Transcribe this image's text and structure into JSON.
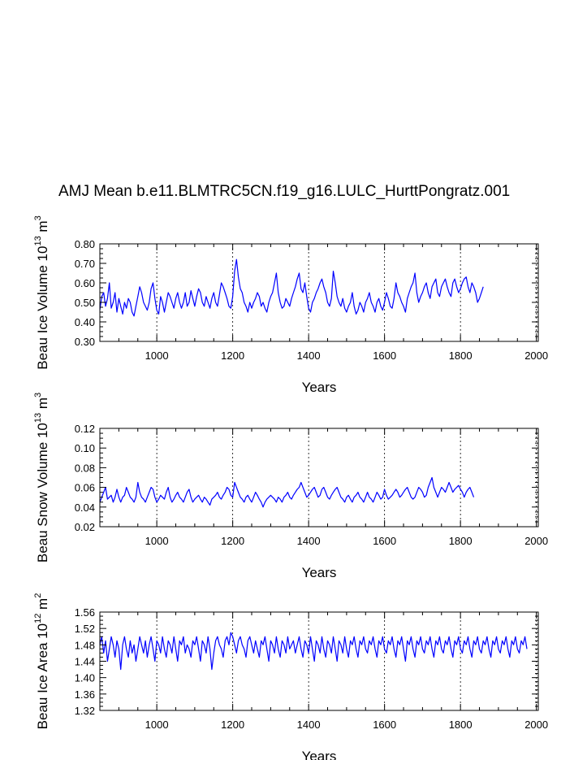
{
  "figure": {
    "title": "AMJ Mean b.e11.BLMTRC5CN.f19_g16.LULC_HurttPongratz.001",
    "line_color": "#0000ff",
    "grid_color": "#000000"
  },
  "chart_data": [
    {
      "type": "line",
      "name": "ice-volume",
      "title": "AMJ Mean b.e11.BLMTRC5CN.f19_g16.LULC_HurttPongratz.001",
      "ylabel": {
        "prefix": "Beau Ice Volume 10",
        "exp": "13",
        "unit": " m",
        "unit_exp": "3"
      },
      "xlabel": "Years",
      "xlim": [
        850,
        2005
      ],
      "ylim": [
        0.3,
        0.8
      ],
      "xticks": [
        1000,
        1200,
        1400,
        1600,
        1800,
        2000
      ],
      "xtick_labels": [
        "1000",
        "1200",
        "1400",
        "1600",
        "1800",
        "2000"
      ],
      "yticks": [
        0.3,
        0.4,
        0.5,
        0.6,
        0.7,
        0.8
      ],
      "ytick_labels": [
        "0.30",
        "0.40",
        "0.50",
        "0.60",
        "0.70",
        "0.80"
      ],
      "grid_x": [
        1000,
        1200,
        1400,
        1600,
        1800,
        2000
      ],
      "x_start": 850,
      "x_step": 5,
      "series": [
        {
          "name": "Beau Ice Volume",
          "values": [
            0.46,
            0.53,
            0.55,
            0.48,
            0.52,
            0.6,
            0.47,
            0.5,
            0.55,
            0.45,
            0.52,
            0.48,
            0.44,
            0.5,
            0.47,
            0.52,
            0.5,
            0.45,
            0.43,
            0.48,
            0.53,
            0.58,
            0.55,
            0.5,
            0.48,
            0.46,
            0.5,
            0.57,
            0.6,
            0.52,
            0.46,
            0.44,
            0.53,
            0.5,
            0.45,
            0.5,
            0.55,
            0.53,
            0.5,
            0.47,
            0.52,
            0.55,
            0.5,
            0.47,
            0.5,
            0.55,
            0.48,
            0.5,
            0.56,
            0.52,
            0.48,
            0.53,
            0.57,
            0.55,
            0.5,
            0.48,
            0.53,
            0.5,
            0.47,
            0.52,
            0.55,
            0.5,
            0.48,
            0.54,
            0.6,
            0.58,
            0.55,
            0.52,
            0.48,
            0.47,
            0.53,
            0.66,
            0.72,
            0.63,
            0.57,
            0.55,
            0.5,
            0.48,
            0.45,
            0.5,
            0.47,
            0.5,
            0.52,
            0.55,
            0.53,
            0.48,
            0.5,
            0.47,
            0.45,
            0.5,
            0.53,
            0.55,
            0.6,
            0.65,
            0.55,
            0.5,
            0.47,
            0.48,
            0.52,
            0.5,
            0.48,
            0.52,
            0.55,
            0.58,
            0.62,
            0.65,
            0.57,
            0.55,
            0.6,
            0.53,
            0.47,
            0.45,
            0.5,
            0.52,
            0.55,
            0.57,
            0.6,
            0.62,
            0.58,
            0.55,
            0.5,
            0.48,
            0.52,
            0.66,
            0.6,
            0.53,
            0.5,
            0.48,
            0.52,
            0.47,
            0.45,
            0.48,
            0.5,
            0.55,
            0.48,
            0.44,
            0.46,
            0.5,
            0.48,
            0.45,
            0.5,
            0.52,
            0.55,
            0.5,
            0.48,
            0.45,
            0.5,
            0.52,
            0.48,
            0.46,
            0.5,
            0.55,
            0.52,
            0.48,
            0.47,
            0.52,
            0.6,
            0.55,
            0.53,
            0.5,
            0.48,
            0.45,
            0.52,
            0.55,
            0.58,
            0.6,
            0.65,
            0.55,
            0.5,
            0.53,
            0.55,
            0.58,
            0.6,
            0.55,
            0.52,
            0.58,
            0.6,
            0.62,
            0.55,
            0.53,
            0.58,
            0.6,
            0.62,
            0.58,
            0.55,
            0.53,
            0.6,
            0.62,
            0.58,
            0.55,
            0.57,
            0.6,
            0.62,
            0.63,
            0.58,
            0.55,
            0.6,
            0.58,
            0.55,
            0.5,
            0.52,
            0.55,
            0.58
          ]
        }
      ]
    },
    {
      "type": "line",
      "name": "snow-volume",
      "ylabel": {
        "prefix": "Beau Snow Volume 10",
        "exp": "13",
        "unit": " m",
        "unit_exp": "3"
      },
      "xlabel": "Years",
      "xlim": [
        850,
        2005
      ],
      "ylim": [
        0.02,
        0.12
      ],
      "xticks": [
        1000,
        1200,
        1400,
        1600,
        1800,
        2000
      ],
      "xtick_labels": [
        "1000",
        "1200",
        "1400",
        "1600",
        "1800",
        "2000"
      ],
      "yticks": [
        0.02,
        0.04,
        0.06,
        0.08,
        0.1,
        0.12
      ],
      "ytick_labels": [
        "0.02",
        "0.04",
        "0.06",
        "0.08",
        "0.10",
        "0.12"
      ],
      "grid_x": [
        1000,
        1200,
        1400,
        1600,
        1800,
        2000
      ],
      "x_start": 850,
      "x_step": 5,
      "series": [
        {
          "name": "Beau Snow Volume",
          "values": [
            0.045,
            0.05,
            0.055,
            0.06,
            0.048,
            0.05,
            0.052,
            0.045,
            0.05,
            0.058,
            0.05,
            0.045,
            0.05,
            0.052,
            0.06,
            0.055,
            0.05,
            0.048,
            0.045,
            0.05,
            0.065,
            0.055,
            0.05,
            0.048,
            0.045,
            0.05,
            0.055,
            0.06,
            0.058,
            0.05,
            0.045,
            0.048,
            0.052,
            0.05,
            0.048,
            0.055,
            0.06,
            0.05,
            0.045,
            0.048,
            0.052,
            0.055,
            0.05,
            0.048,
            0.045,
            0.05,
            0.055,
            0.058,
            0.05,
            0.045,
            0.048,
            0.05,
            0.052,
            0.048,
            0.045,
            0.05,
            0.048,
            0.045,
            0.042,
            0.048,
            0.05,
            0.052,
            0.055,
            0.05,
            0.048,
            0.052,
            0.055,
            0.06,
            0.058,
            0.052,
            0.05,
            0.065,
            0.06,
            0.055,
            0.05,
            0.048,
            0.045,
            0.05,
            0.052,
            0.048,
            0.045,
            0.05,
            0.055,
            0.052,
            0.048,
            0.045,
            0.04,
            0.045,
            0.048,
            0.05,
            0.052,
            0.05,
            0.048,
            0.045,
            0.05,
            0.048,
            0.045,
            0.05,
            0.052,
            0.055,
            0.05,
            0.048,
            0.052,
            0.055,
            0.058,
            0.06,
            0.065,
            0.06,
            0.055,
            0.05,
            0.052,
            0.055,
            0.058,
            0.06,
            0.055,
            0.05,
            0.052,
            0.058,
            0.06,
            0.055,
            0.05,
            0.048,
            0.052,
            0.055,
            0.058,
            0.06,
            0.055,
            0.05,
            0.048,
            0.045,
            0.05,
            0.052,
            0.048,
            0.045,
            0.05,
            0.052,
            0.055,
            0.05,
            0.048,
            0.045,
            0.05,
            0.055,
            0.05,
            0.048,
            0.045,
            0.05,
            0.055,
            0.052,
            0.048,
            0.05,
            0.058,
            0.052,
            0.048,
            0.05,
            0.052,
            0.055,
            0.058,
            0.055,
            0.05,
            0.052,
            0.055,
            0.058,
            0.06,
            0.055,
            0.05,
            0.048,
            0.05,
            0.055,
            0.06,
            0.058,
            0.055,
            0.05,
            0.052,
            0.06,
            0.065,
            0.07,
            0.06,
            0.055,
            0.05,
            0.055,
            0.06,
            0.058,
            0.055,
            0.06,
            0.065,
            0.06,
            0.055,
            0.058,
            0.06,
            0.062,
            0.058,
            0.055,
            0.05,
            0.055,
            0.058,
            0.06,
            0.055,
            0.05
          ]
        }
      ]
    },
    {
      "type": "line",
      "name": "ice-area",
      "ylabel": {
        "prefix": "Beau Ice Area 10",
        "exp": "12",
        "unit": " m",
        "unit_exp": "2"
      },
      "xlabel": "Years",
      "xlim": [
        850,
        2005
      ],
      "ylim": [
        1.32,
        1.56
      ],
      "xticks": [
        1000,
        1200,
        1400,
        1600,
        1800,
        2000
      ],
      "xtick_labels": [
        "1000",
        "1200",
        "1400",
        "1600",
        "1800",
        "2000"
      ],
      "yticks": [
        1.32,
        1.36,
        1.4,
        1.44,
        1.48,
        1.52,
        1.56
      ],
      "ytick_labels": [
        "1.32",
        "1.36",
        "1.40",
        "1.44",
        "1.48",
        "1.52",
        "1.56"
      ],
      "grid_x": [
        1000,
        1200,
        1400,
        1600,
        1800,
        2000
      ],
      "x_start": 850,
      "x_step": 5,
      "series": [
        {
          "name": "Beau Ice Area",
          "values": [
            1.48,
            1.5,
            1.46,
            1.49,
            1.44,
            1.47,
            1.5,
            1.48,
            1.45,
            1.49,
            1.47,
            1.42,
            1.48,
            1.5,
            1.47,
            1.45,
            1.49,
            1.46,
            1.48,
            1.44,
            1.47,
            1.5,
            1.48,
            1.46,
            1.49,
            1.45,
            1.48,
            1.5,
            1.47,
            1.44,
            1.49,
            1.48,
            1.46,
            1.5,
            1.47,
            1.45,
            1.49,
            1.48,
            1.46,
            1.5,
            1.47,
            1.44,
            1.49,
            1.48,
            1.5,
            1.46,
            1.48,
            1.47,
            1.45,
            1.49,
            1.48,
            1.5,
            1.47,
            1.44,
            1.49,
            1.48,
            1.46,
            1.5,
            1.47,
            1.42,
            1.46,
            1.49,
            1.5,
            1.48,
            1.47,
            1.45,
            1.49,
            1.5,
            1.48,
            1.51,
            1.5,
            1.48,
            1.46,
            1.49,
            1.5,
            1.48,
            1.47,
            1.45,
            1.49,
            1.5,
            1.48,
            1.46,
            1.49,
            1.47,
            1.45,
            1.49,
            1.48,
            1.5,
            1.47,
            1.44,
            1.49,
            1.48,
            1.46,
            1.5,
            1.47,
            1.45,
            1.49,
            1.48,
            1.46,
            1.5,
            1.47,
            1.48,
            1.49,
            1.46,
            1.48,
            1.5,
            1.47,
            1.45,
            1.49,
            1.48,
            1.46,
            1.5,
            1.47,
            1.44,
            1.49,
            1.48,
            1.46,
            1.5,
            1.47,
            1.45,
            1.49,
            1.48,
            1.46,
            1.5,
            1.47,
            1.44,
            1.49,
            1.48,
            1.46,
            1.5,
            1.47,
            1.45,
            1.49,
            1.48,
            1.5,
            1.47,
            1.45,
            1.49,
            1.48,
            1.5,
            1.47,
            1.46,
            1.49,
            1.48,
            1.5,
            1.47,
            1.45,
            1.49,
            1.48,
            1.5,
            1.47,
            1.46,
            1.49,
            1.48,
            1.5,
            1.47,
            1.45,
            1.49,
            1.48,
            1.5,
            1.47,
            1.44,
            1.49,
            1.48,
            1.5,
            1.47,
            1.45,
            1.49,
            1.48,
            1.5,
            1.47,
            1.46,
            1.49,
            1.48,
            1.5,
            1.47,
            1.45,
            1.49,
            1.48,
            1.5,
            1.47,
            1.46,
            1.49,
            1.48,
            1.5,
            1.47,
            1.45,
            1.49,
            1.48,
            1.5,
            1.47,
            1.46,
            1.49,
            1.48,
            1.5,
            1.47,
            1.45,
            1.49,
            1.48,
            1.5,
            1.47,
            1.46,
            1.49,
            1.48,
            1.5,
            1.47,
            1.45,
            1.49,
            1.48,
            1.5,
            1.47,
            1.46,
            1.49,
            1.48,
            1.5,
            1.47,
            1.45,
            1.49,
            1.48,
            1.5,
            1.47,
            1.46,
            1.49,
            1.48,
            1.5,
            1.47
          ]
        }
      ]
    }
  ]
}
